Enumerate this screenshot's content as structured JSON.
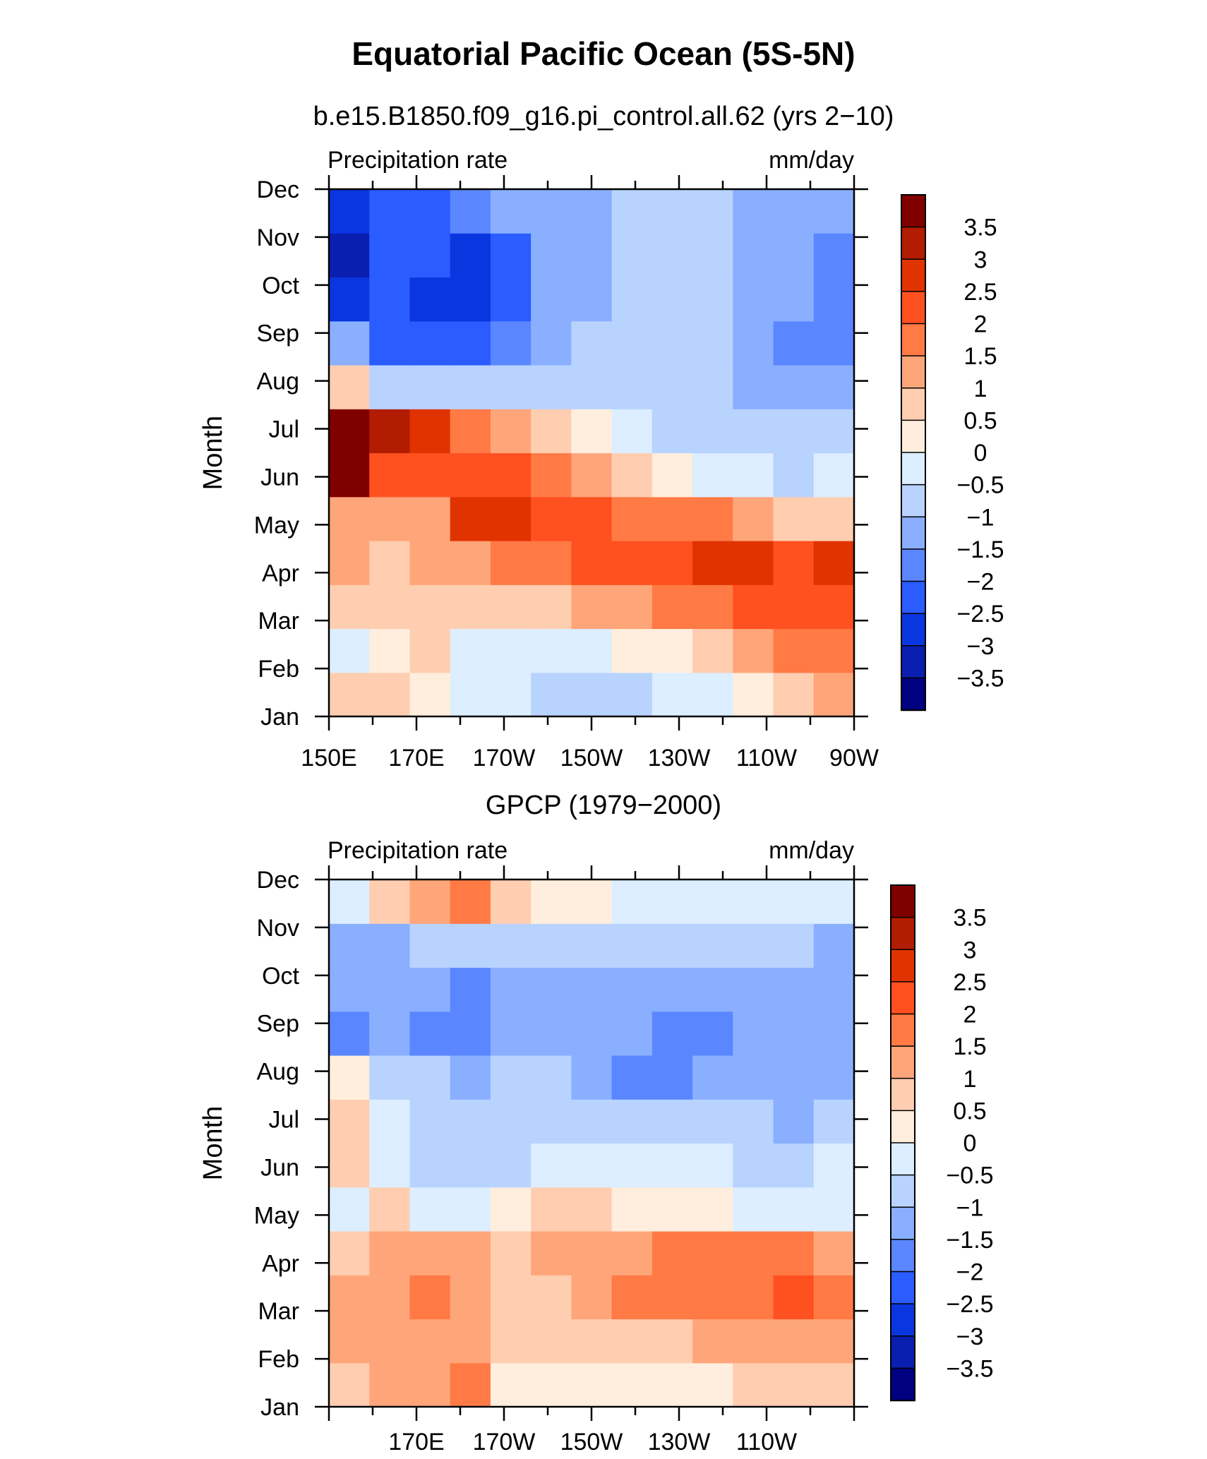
{
  "page": {
    "title": "Equatorial Pacific Ocean (5S-5N)"
  },
  "colorbar": {
    "labels": [
      "3.5",
      "3",
      "2.5",
      "2",
      "1.5",
      "1",
      "0.5",
      "0",
      "−0.5",
      "−1",
      "−1.5",
      "−2",
      "−2.5",
      "−3",
      "−3.5"
    ],
    "colors": [
      "#800000",
      "#b21c00",
      "#e13300",
      "#ff5020",
      "#ff7a45",
      "#ffa57a",
      "#ffcdb0",
      "#ffeedd",
      "#dceeff",
      "#b9d3ff",
      "#8aafff",
      "#5a86ff",
      "#2a5cff",
      "#0a36e0",
      "#0a1eb0",
      "#000080"
    ]
  },
  "chart_data": [
    {
      "type": "heatmap",
      "title": "b.e15.B1850.f09_g16.pi_control.all.62 (yrs 2−10)",
      "left_label": "Precipitation rate",
      "right_label": "mm/day",
      "ylabel": "Month",
      "xticks": [
        "150E",
        "170E",
        "170W",
        "150W",
        "130W",
        "110W",
        "90W"
      ],
      "x_values": [
        150,
        160,
        170,
        180,
        190,
        200,
        210,
        220,
        230,
        240,
        250,
        260,
        270
      ],
      "yticks": [
        "Jan",
        "Feb",
        "Mar",
        "Apr",
        "May",
        "Jun",
        "Jul",
        "Aug",
        "Sep",
        "Oct",
        "Nov",
        "Dec"
      ],
      "values": [
        [
          0.6,
          0.5,
          0.3,
          -0.2,
          -0.5,
          -0.8,
          -0.9,
          -0.8,
          -0.5,
          -0.2,
          0.2,
          0.8,
          1.3
        ],
        [
          -0.3,
          0.4,
          0.6,
          -0.3,
          -0.4,
          -0.5,
          -0.3,
          0.0,
          0.4,
          0.7,
          1.1,
          1.5,
          1.9
        ],
        [
          0.5,
          0.8,
          0.9,
          0.7,
          0.7,
          0.8,
          1.0,
          1.3,
          1.6,
          1.8,
          2.0,
          2.1,
          2.3
        ],
        [
          1.0,
          0.5,
          1.0,
          1.4,
          1.5,
          1.8,
          2.2,
          2.3,
          2.4,
          2.6,
          2.5,
          2.4,
          2.7
        ],
        [
          1.2,
          1.1,
          1.2,
          2.5,
          2.6,
          2.4,
          2.1,
          1.9,
          1.7,
          1.5,
          1.2,
          0.9,
          0.7
        ],
        [
          3.6,
          2.3,
          2.2,
          2.3,
          2.1,
          1.7,
          1.2,
          0.6,
          0.1,
          -0.3,
          -0.5,
          -0.6,
          -0.4
        ],
        [
          3.7,
          3.1,
          2.5,
          1.8,
          1.3,
          0.8,
          0.2,
          -0.3,
          -0.6,
          -0.8,
          -0.9,
          -1.0,
          -1.0
        ],
        [
          0.5,
          -0.6,
          -0.8,
          -0.9,
          -0.7,
          -0.7,
          -0.8,
          -0.9,
          -0.9,
          -0.9,
          -1.1,
          -1.4,
          -1.4
        ],
        [
          -1.5,
          -2.2,
          -2.5,
          -2.3,
          -1.6,
          -1.2,
          -1.0,
          -0.9,
          -0.9,
          -0.8,
          -1.3,
          -1.6,
          -1.6
        ],
        [
          -2.7,
          -2.5,
          -2.6,
          -3.0,
          -2.1,
          -1.4,
          -1.1,
          -1.0,
          -0.9,
          -0.7,
          -1.1,
          -1.4,
          -1.7
        ],
        [
          -3.3,
          -2.3,
          -2.4,
          -2.6,
          -2.3,
          -1.4,
          -1.1,
          -0.9,
          -0.9,
          -1.0,
          -1.2,
          -1.4,
          -1.8
        ],
        [
          -2.8,
          -2.4,
          -2.2,
          -2.0,
          -1.5,
          -1.3,
          -1.2,
          -0.8,
          -0.7,
          -0.9,
          -1.1,
          -1.3,
          -1.3
        ]
      ],
      "zlim": [
        -4,
        4
      ]
    },
    {
      "type": "heatmap",
      "title": "GPCP (1979−2000)",
      "left_label": "Precipitation rate",
      "right_label": "mm/day",
      "ylabel": "Month",
      "xticks": [
        "",
        "170E",
        "170W",
        "150W",
        "130W",
        "110W",
        ""
      ],
      "x_values": [
        150,
        160,
        170,
        180,
        190,
        200,
        210,
        220,
        230,
        240,
        250,
        260,
        270
      ],
      "yticks": [
        "Jan",
        "Feb",
        "Mar",
        "Apr",
        "May",
        "Jun",
        "Jul",
        "Aug",
        "Sep",
        "Oct",
        "Nov",
        "Dec"
      ],
      "values": [
        [
          0.9,
          1.0,
          1.2,
          1.6,
          0.4,
          0.2,
          0.2,
          0.2,
          0.3,
          0.4,
          0.6,
          0.8,
          0.9
        ],
        [
          1.1,
          1.3,
          1.2,
          1.3,
          0.5,
          0.5,
          0.6,
          0.7,
          0.8,
          1.0,
          1.1,
          1.2,
          1.3
        ],
        [
          1.2,
          1.2,
          1.5,
          1.4,
          0.6,
          0.8,
          1.1,
          1.5,
          1.7,
          1.8,
          1.6,
          2.0,
          1.8
        ],
        [
          0.5,
          1.1,
          1.2,
          1.2,
          0.8,
          1.0,
          1.2,
          1.4,
          1.6,
          1.6,
          1.5,
          1.7,
          1.4
        ],
        [
          -0.3,
          0.6,
          -0.3,
          -0.2,
          0.4,
          0.6,
          0.6,
          0.4,
          0.2,
          0.1,
          -0.1,
          -0.2,
          -0.3
        ],
        [
          0.6,
          -0.1,
          -0.6,
          -0.8,
          -0.6,
          -0.3,
          -0.1,
          -0.3,
          -0.4,
          -0.5,
          -0.6,
          -0.6,
          -0.4
        ],
        [
          0.7,
          -0.3,
          -0.8,
          -1.0,
          -0.8,
          -0.7,
          -0.8,
          -0.9,
          -0.9,
          -0.9,
          -0.9,
          -1.1,
          -1.0
        ],
        [
          0.4,
          -0.6,
          -0.9,
          -1.1,
          -1.0,
          -1.0,
          -1.2,
          -1.6,
          -1.6,
          -1.4,
          -1.2,
          -1.4,
          -1.3
        ],
        [
          -1.6,
          -1.2,
          -1.6,
          -1.8,
          -1.5,
          -1.2,
          -1.2,
          -1.5,
          -1.6,
          -1.6,
          -1.1,
          -1.4,
          -1.4
        ],
        [
          -1.5,
          -1.3,
          -1.5,
          -2.0,
          -1.4,
          -1.1,
          -1.2,
          -1.4,
          -1.5,
          -1.4,
          -1.1,
          -1.3,
          -1.5
        ],
        [
          -1.3,
          -1.1,
          -1.0,
          -0.9,
          -0.8,
          -0.7,
          -0.6,
          -0.6,
          -0.7,
          -0.7,
          -0.8,
          -1.0,
          -1.1
        ],
        [
          -0.2,
          0.8,
          1.0,
          1.6,
          0.6,
          0.4,
          0.2,
          -0.2,
          -0.3,
          -0.3,
          -0.3,
          -0.2,
          -0.2
        ]
      ],
      "zlim": [
        -4,
        4
      ]
    }
  ]
}
